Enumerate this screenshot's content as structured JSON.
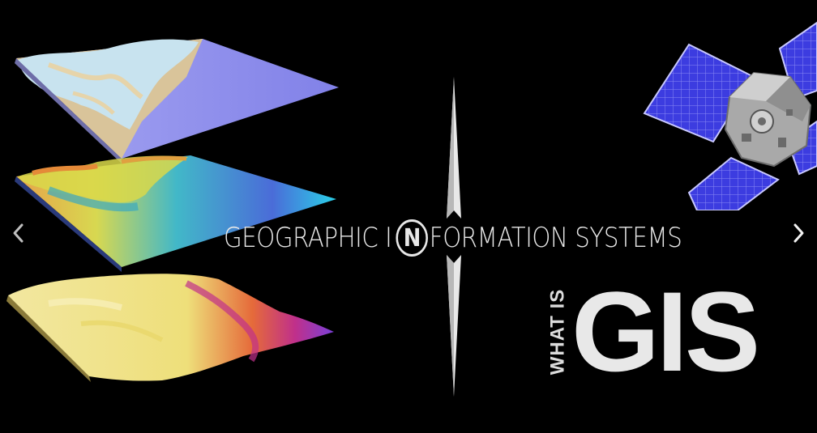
{
  "slide": {
    "title_before_badge": "GEOGRAPHIC I",
    "badge_letter": "N",
    "title_after_badge": "FORMATION SYSTEMS",
    "subtitle": "WHAT IS",
    "acronym": "GIS"
  },
  "icons": {
    "prev": "chevron-left-icon",
    "next": "chevron-right-icon",
    "compass": "compass-needle-icon",
    "satellite": "satellite-illustration"
  },
  "colors": {
    "background": "#000000",
    "text": "#e8e8e8",
    "terrain_top": "#bcd9e8",
    "terrain_sand": "#d9c49a",
    "terrain_sea": "#8f8ff0",
    "elevation_low": "#3a57d8",
    "elevation_high": "#e7e04a",
    "heat_yellow": "#f0e68c",
    "heat_magenta": "#c0308a",
    "solar_panel": "#3c3ce0"
  }
}
